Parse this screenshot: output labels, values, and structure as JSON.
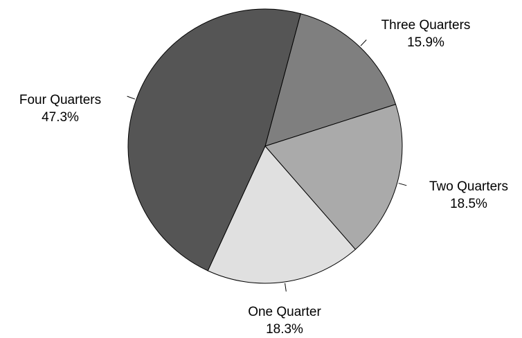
{
  "chart_data": {
    "type": "pie",
    "title": "",
    "legend": "none",
    "slices": [
      {
        "label": "Three Quarters",
        "value": 15.9,
        "value_label": "15.9%",
        "color": "#7f7f7f"
      },
      {
        "label": "Two Quarters",
        "value": 18.5,
        "value_label": "18.5%",
        "color": "#aaaaaa"
      },
      {
        "label": "One Quarter",
        "value": 18.3,
        "value_label": "18.3%",
        "color": "#e0e0e0"
      },
      {
        "label": "Four Quarters",
        "value": 47.3,
        "value_label": "47.3%",
        "color": "#555555"
      }
    ]
  }
}
